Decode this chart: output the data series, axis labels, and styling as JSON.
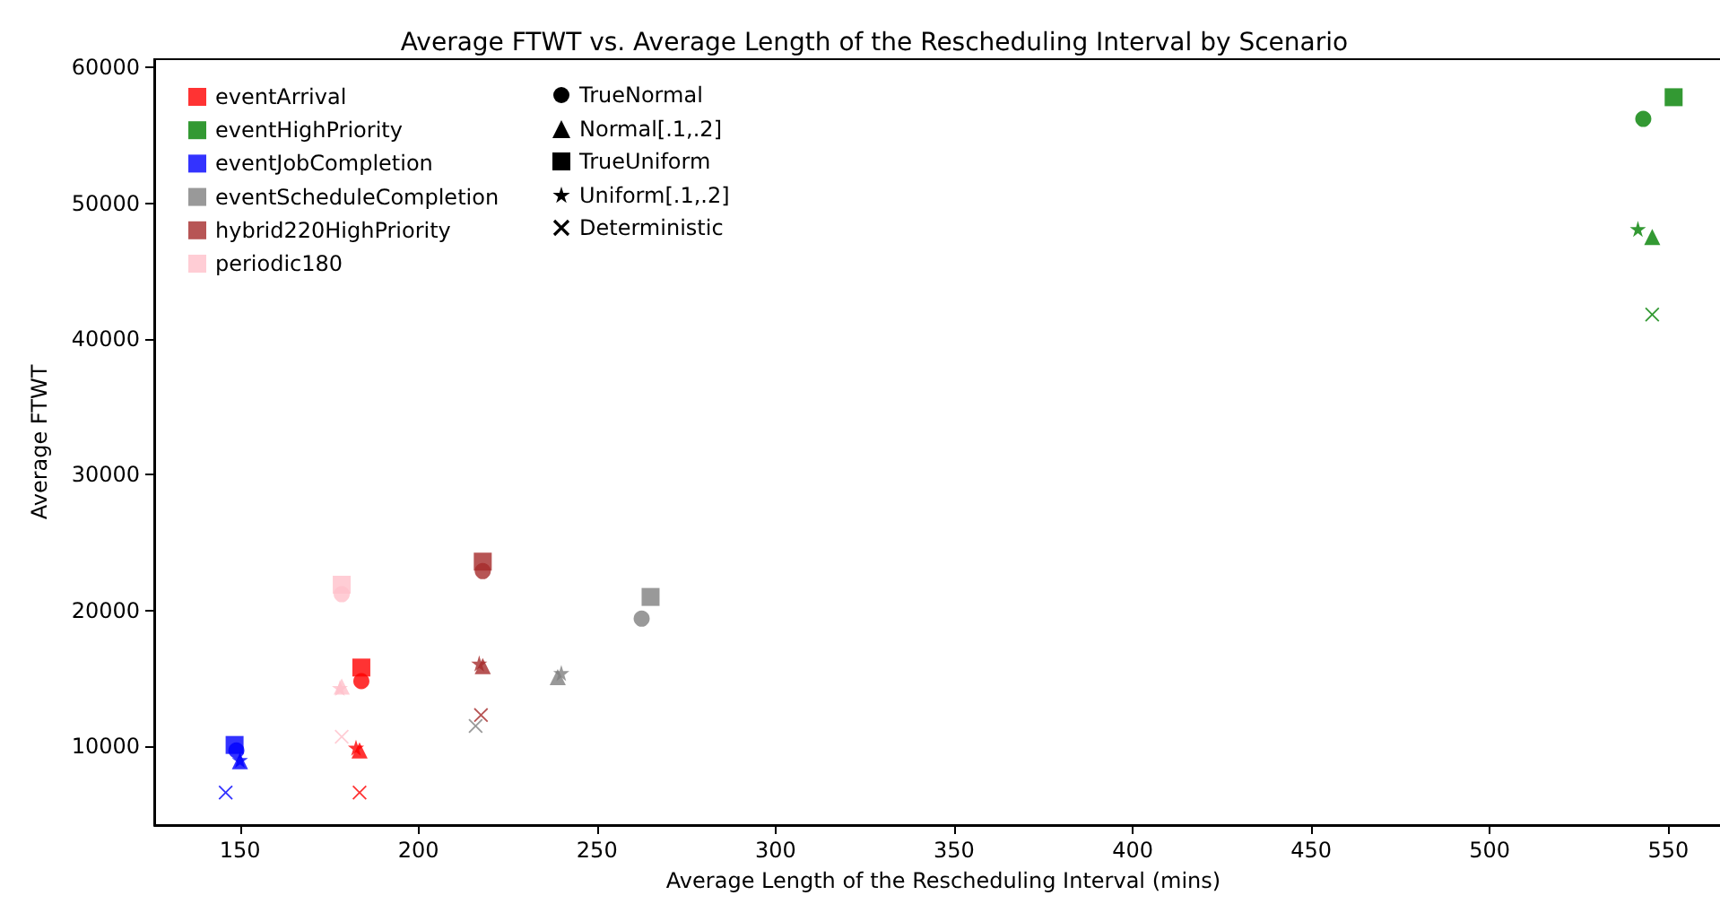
{
  "chart_data": {
    "type": "scatter",
    "title": "Average FTWT vs. Average Length of the Rescheduling Interval by Scenario",
    "xlabel": "Average Length of the Rescheduling Interval (mins)",
    "ylabel": "Average FTWT",
    "xlim": [
      126,
      568
    ],
    "xticks": [
      150,
      200,
      250,
      300,
      350,
      400,
      450,
      500,
      550
    ],
    "ylim": [
      4200,
      60600
    ],
    "yticks": [
      10000,
      20000,
      30000,
      40000,
      50000,
      60000
    ],
    "grid": false,
    "legend": "top left",
    "annotations": [
      "TrueNormal",
      "Normal[.1,.2]",
      "TrueUniform",
      "Uniform[.1,.2]",
      "Deterministic"
    ],
    "series": [
      {
        "name": "eventArrival",
        "color": "#ff0000",
        "marker": "square",
        "x": [
          184
        ],
        "values": [
          15800
        ]
      },
      {
        "color": "#ff0000",
        "marker": "circle",
        "x": [
          184
        ],
        "values": [
          14800
        ]
      },
      {
        "color": "#ff0000",
        "marker": "triangle",
        "x": [
          183.5
        ],
        "values": [
          9700
        ]
      },
      {
        "color": "#ff0000",
        "marker": "star",
        "x": [
          182.5
        ],
        "values": [
          9900
        ]
      },
      {
        "color": "#ff0000",
        "marker": "cross",
        "x": [
          183.5
        ],
        "values": [
          6600
        ]
      },
      {
        "name": "eventHighPriority",
        "color": "#008000",
        "marker": "square",
        "x": [
          551.5
        ],
        "values": [
          57800
        ]
      },
      {
        "color": "#008000",
        "marker": "circle",
        "x": [
          543
        ],
        "values": [
          56200
        ]
      },
      {
        "color": "#008000",
        "marker": "triangle",
        "x": [
          545.5
        ],
        "values": [
          47500
        ]
      },
      {
        "color": "#008000",
        "marker": "star",
        "x": [
          541.5
        ],
        "values": [
          48100
        ]
      },
      {
        "color": "#008000",
        "marker": "cross",
        "x": [
          545.5
        ],
        "values": [
          41800
        ]
      },
      {
        "name": "eventJobCompletion",
        "color": "#0000ff",
        "marker": "square",
        "x": [
          148.5
        ],
        "values": [
          10100
        ]
      },
      {
        "color": "#0000ff",
        "marker": "circle",
        "x": [
          149
        ],
        "values": [
          9700
        ]
      },
      {
        "color": "#0000ff",
        "marker": "triangle",
        "x": [
          150
        ],
        "values": [
          8900
        ]
      },
      {
        "color": "#0000ff",
        "marker": "star",
        "x": [
          150
        ],
        "values": [
          9000
        ]
      },
      {
        "color": "#0000ff",
        "marker": "cross",
        "x": [
          146
        ],
        "values": [
          6600
        ]
      },
      {
        "name": "eventScheduleCompletion",
        "color": "#808080",
        "marker": "square",
        "x": [
          265
        ],
        "values": [
          21000
        ]
      },
      {
        "color": "#808080",
        "marker": "circle",
        "x": [
          262.5
        ],
        "values": [
          19400
        ]
      },
      {
        "color": "#808080",
        "marker": "triangle",
        "x": [
          239
        ],
        "values": [
          15100
        ]
      },
      {
        "color": "#808080",
        "marker": "star",
        "x": [
          240
        ],
        "values": [
          15400
        ]
      },
      {
        "color": "#808080",
        "marker": "cross",
        "x": [
          216
        ],
        "values": [
          11500
        ]
      },
      {
        "name": "hybrid220HighPriority",
        "color": "#a52a2a",
        "marker": "square",
        "x": [
          218
        ],
        "values": [
          23600
        ]
      },
      {
        "color": "#a52a2a",
        "marker": "circle",
        "x": [
          218
        ],
        "values": [
          22900
        ]
      },
      {
        "color": "#a52a2a",
        "marker": "triangle",
        "x": [
          218
        ],
        "values": [
          15900
        ]
      },
      {
        "color": "#a52a2a",
        "marker": "star",
        "x": [
          217
        ],
        "values": [
          16100
        ]
      },
      {
        "color": "#a52a2a",
        "marker": "cross",
        "x": [
          217.5
        ],
        "values": [
          12300
        ]
      },
      {
        "name": "periodic180",
        "color": "#ffc0cb",
        "marker": "square",
        "x": [
          178.5
        ],
        "values": [
          21900
        ]
      },
      {
        "color": "#ffc0cb",
        "marker": "circle",
        "x": [
          178.5
        ],
        "values": [
          21200
        ]
      },
      {
        "color": "#ffc0cb",
        "marker": "triangle",
        "x": [
          178.5
        ],
        "values": [
          14400
        ]
      },
      {
        "color": "#ffc0cb",
        "marker": "star",
        "x": [
          178
        ],
        "values": [
          14300
        ]
      },
      {
        "color": "#ffc0cb",
        "marker": "cross",
        "x": [
          178.5
        ],
        "values": [
          10700
        ]
      }
    ]
  }
}
